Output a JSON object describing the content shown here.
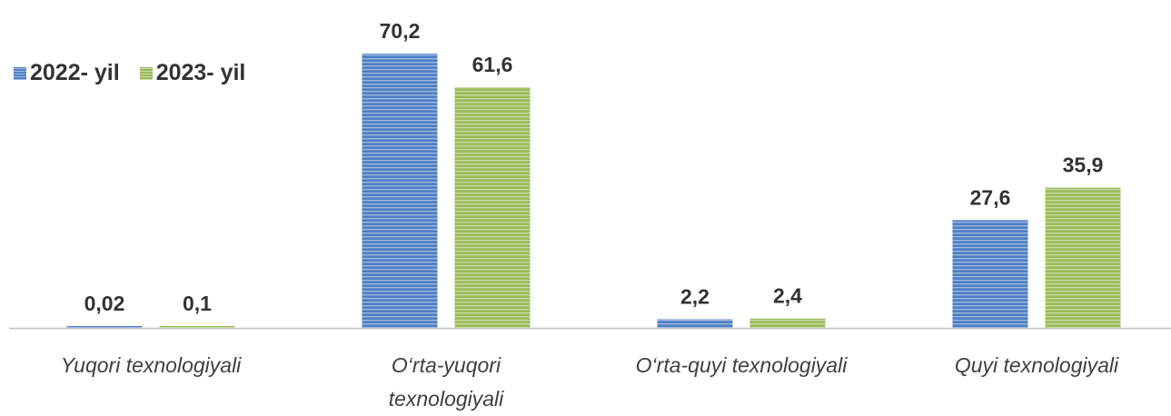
{
  "chart_data": {
    "type": "bar",
    "categories": [
      "Yuqori texnologiyali",
      "O‘rta-yuqori texnologiyali",
      "O‘rta-quyi texnologiyali",
      "Quyi texnologiyali"
    ],
    "series": [
      {
        "name": "2022- yil",
        "color": "#4f7fc4",
        "values": [
          0.02,
          70.2,
          2.2,
          27.6
        ],
        "value_labels": [
          "0,02",
          "70,2",
          "2,2",
          "27,6"
        ]
      },
      {
        "name": "2023- yil",
        "color": "#9bbb59",
        "values": [
          0.1,
          61.6,
          2.4,
          35.9
        ],
        "value_labels": [
          "0,1",
          "61,6",
          "2,4",
          "35,9"
        ]
      }
    ],
    "legend": "top-left"
  }
}
